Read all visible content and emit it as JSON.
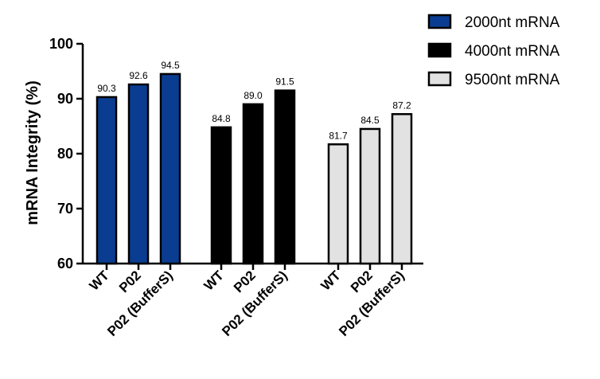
{
  "chart_data": {
    "type": "bar",
    "ylabel": "mRNA Integrity (%)",
    "ylim": [
      60,
      100
    ],
    "yticks": [
      60,
      70,
      80,
      90,
      100
    ],
    "categories": [
      "WT",
      "P02",
      "P02 (BufferS)"
    ],
    "series": [
      {
        "name": "2000nt mRNA",
        "color": "#0a3d91",
        "values": [
          90.3,
          92.6,
          94.5
        ],
        "labels": [
          "90.3",
          "92.6",
          "94.5"
        ]
      },
      {
        "name": "4000nt mRNA",
        "color": "#000000",
        "values": [
          84.8,
          89.0,
          91.5
        ],
        "labels": [
          "84.8",
          "89.0",
          "91.5"
        ]
      },
      {
        "name": "9500nt mRNA",
        "color": "#e2e2e2",
        "values": [
          81.7,
          84.5,
          87.2
        ],
        "labels": [
          "81.7",
          "84.5",
          "87.2"
        ]
      }
    ],
    "legend_position": "top-right",
    "grid": false
  }
}
